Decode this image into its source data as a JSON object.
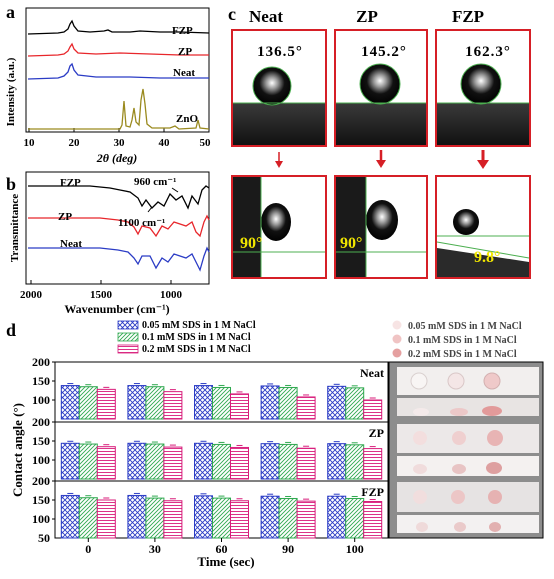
{
  "panels": {
    "a": {
      "label": "a",
      "xlabel": "2θ (deg)",
      "ylabel": "Intensity (a.u.)",
      "xticks": [
        "10",
        "20",
        "30",
        "40",
        "50"
      ],
      "series_labels": [
        "FZP",
        "ZP",
        "Neat",
        "ZnO"
      ],
      "colors": {
        "FZP": "#000000",
        "ZP": "#e8262b",
        "Neat": "#2b3cc5",
        "ZnO": "#9a8a1f"
      }
    },
    "b": {
      "label": "b",
      "xlabel": "Wavenumber (cm⁻¹)",
      "ylabel": "Transmittance",
      "xticks": [
        "2000",
        "1500",
        "1000"
      ],
      "series_labels": [
        "FZP",
        "ZP",
        "Neat"
      ],
      "annotations": [
        "960 cm⁻¹",
        "1100 cm⁻¹"
      ],
      "colors": {
        "FZP": "#000000",
        "ZP": "#e8262b",
        "Neat": "#2b3cc5"
      }
    },
    "c": {
      "label": "c",
      "columns": [
        {
          "name": "Neat",
          "static_angle": "136.5°",
          "sliding_angle": "90°"
        },
        {
          "name": "ZP",
          "static_angle": "145.2°",
          "sliding_angle": "90°"
        },
        {
          "name": "FZP",
          "static_angle": "162.3°",
          "sliding_angle": "9.8°"
        }
      ]
    },
    "d": {
      "label": "d",
      "legend_left": [
        "0.05 mM SDS in 1 M NaCl",
        "0.1 mM SDS in 1 M NaCl",
        "0.2 mM SDS in 1 M NaCl"
      ],
      "legend_right": [
        "0.05 mM SDS in 1 M NaCl",
        "0.1 mM SDS in 1 M NaCl",
        "0.2 mM SDS in 1 M NaCl"
      ]
    }
  },
  "chart_data": {
    "type": "bar",
    "xlabel": "Time (sec)",
    "ylabel": "Contact angle (°)",
    "categories": [
      "0",
      "30",
      "60",
      "90",
      "100"
    ],
    "yticks": [
      "200",
      "150",
      "100",
      "50"
    ],
    "ylim": [
      0,
      200
    ],
    "colors": [
      "#2b3cc5",
      "#2fa84f",
      "#d81b7a"
    ],
    "subplots": [
      {
        "name": "Neat",
        "series": [
          {
            "name": "0.05 mM SDS in 1 M NaCl",
            "values": [
              138,
              138,
              138,
              137,
              136
            ]
          },
          {
            "name": "0.1 mM SDS in 1 M NaCl",
            "values": [
              135,
              135,
              133,
              133,
              132
            ]
          },
          {
            "name": "0.2 mM SDS in 1 M NaCl",
            "values": [
              128,
              122,
              116,
              108,
              100
            ]
          }
        ]
      },
      {
        "name": "ZP",
        "series": [
          {
            "name": "0.05 mM SDS in 1 M NaCl",
            "values": [
              144,
              144,
              144,
              143,
              143
            ]
          },
          {
            "name": "0.1 mM SDS in 1 M NaCl",
            "values": [
              142,
              142,
              141,
              141,
              140
            ]
          },
          {
            "name": "0.2 mM SDS in 1 M NaCl",
            "values": [
              135,
              134,
              133,
              131,
              130
            ]
          }
        ]
      },
      {
        "name": "FZP",
        "series": [
          {
            "name": "0.05 mM SDS in 1 M NaCl",
            "values": [
              162,
              162,
              161,
              160,
              160
            ]
          },
          {
            "name": "0.1 mM SDS in 1 M NaCl",
            "values": [
              156,
              155,
              155,
              154,
              154
            ]
          },
          {
            "name": "0.2 mM SDS in 1 M NaCl",
            "values": [
              150,
              148,
              148,
              147,
              146
            ]
          }
        ]
      }
    ]
  }
}
